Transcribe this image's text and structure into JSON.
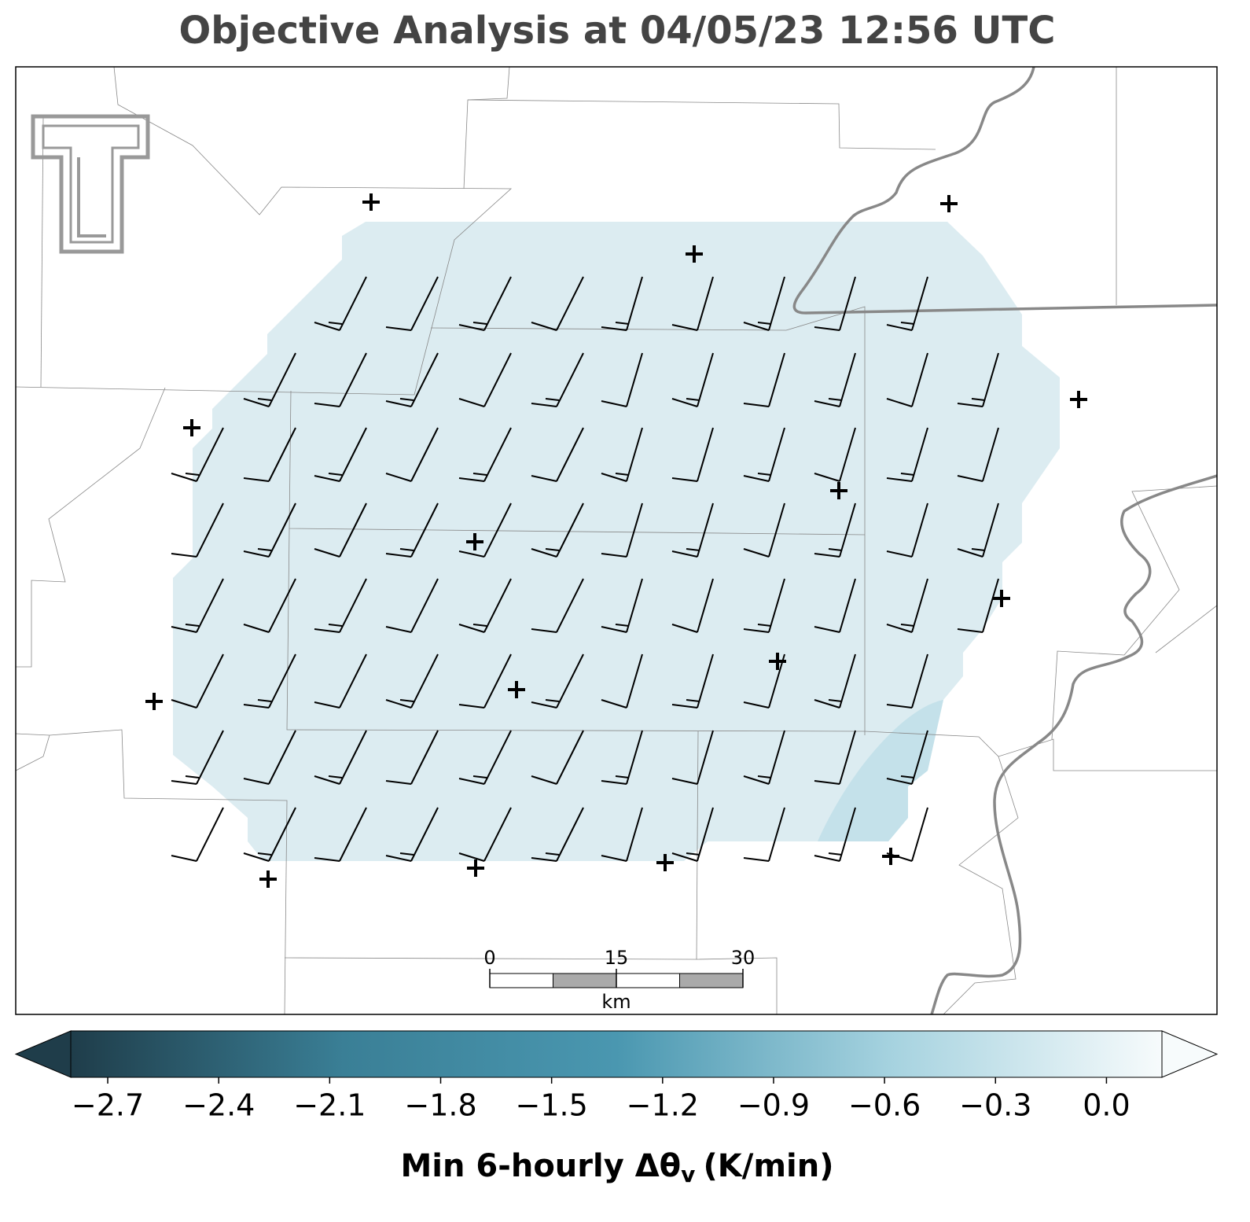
{
  "title": "Objective Analysis at 04/05/23 12:56 UTC",
  "colorbar": {
    "lim": [
      -2.8,
      0.15
    ],
    "ticks": [
      {
        "value": -2.7,
        "label": "−2.7"
      },
      {
        "value": -2.4,
        "label": "−2.4"
      },
      {
        "value": -2.1,
        "label": "−2.1"
      },
      {
        "value": -1.8,
        "label": "−1.8"
      },
      {
        "value": -1.5,
        "label": "−1.5"
      },
      {
        "value": -1.2,
        "label": "−1.2"
      },
      {
        "value": -0.9,
        "label": "−0.9"
      },
      {
        "value": -0.6,
        "label": "−0.6"
      },
      {
        "value": -0.3,
        "label": "−0.3"
      },
      {
        "value": 0,
        "label": "0.0"
      }
    ],
    "colors": [
      "#1f3d4a",
      "#3a7f96",
      "#4a97b0",
      "#a5d2df",
      "#f7fbfc"
    ],
    "label": {
      "text": "Min 6-hourly Δθ",
      "subscript": "v",
      "units": "(K/min)"
    }
  },
  "scale_bar": {
    "ticks": [
      0,
      15,
      30
    ],
    "unit": "km"
  }
}
